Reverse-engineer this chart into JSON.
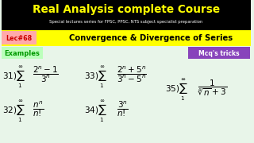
{
  "bg_color": "#d4edda",
  "header_bg": "#000000",
  "title": "Real Analysis complete Course",
  "subtitle": "Special lectures series for FPSC, PPSC, NTS subject specialist preparation",
  "lec_label": "Lec#68",
  "lec_bg": "#ff8888",
  "topic_bg": "#ffff00",
  "topic_text": "Convergence & Divergence of Series",
  "examples_label": "Examples",
  "examples_color": "#00aa00",
  "examples_bg": "#ccffcc",
  "mcq_label": "Mcq's tricks",
  "mcq_bg": "#8844bb",
  "content_bg": "#e8f5e9",
  "title_color": "#ffff00"
}
